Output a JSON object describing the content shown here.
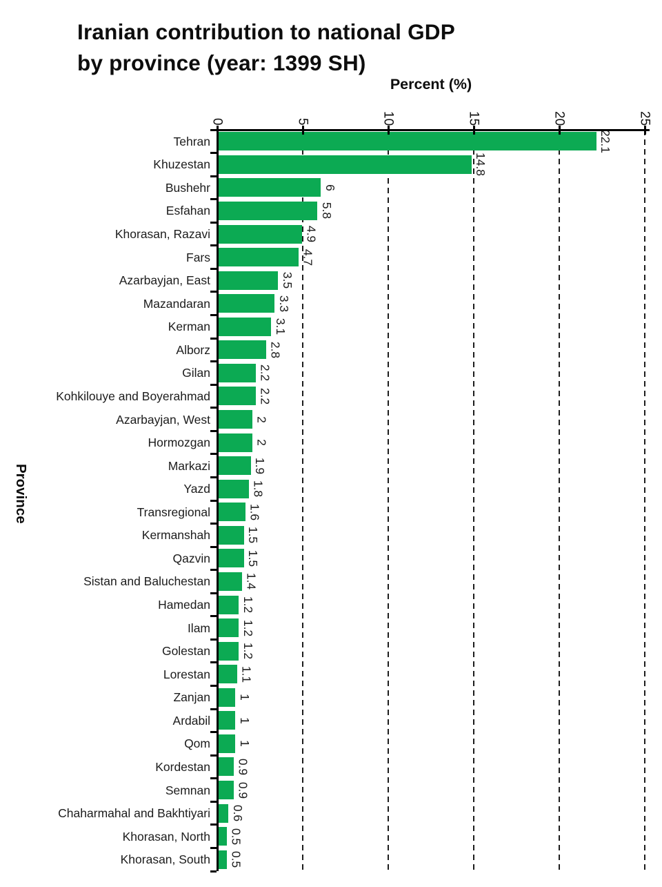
{
  "title": {
    "line1": "Iranian contribution to national GDP",
    "line2": "by province (year: 1399 SH)"
  },
  "chart_data": {
    "type": "bar",
    "orientation": "horizontal",
    "title": "Iranian contribution to national GDP by province (year: 1399 SH)",
    "xlabel": "Percent (%)",
    "ylabel": "Province",
    "xlim": [
      0,
      25
    ],
    "x_ticks": [
      0,
      5,
      10,
      15,
      20,
      25
    ],
    "grid": "vertical dashed lines at x ticks, behind bars",
    "legend": "none",
    "bar_color": "#0caa53",
    "categories": [
      "Tehran",
      "Khuzestan",
      "Bushehr",
      "Esfahan",
      "Khorasan, Razavi",
      "Fars",
      "Azarbayjan, East",
      "Mazandaran",
      "Kerman",
      "Alborz",
      "Gilan",
      "Kohkilouye and Boyerahmad",
      "Azarbayjan, West",
      "Hormozgan",
      "Markazi",
      "Yazd",
      "Transregional",
      "Kermanshah",
      "Qazvin",
      "Sistan and Baluchestan",
      "Hamedan",
      "Ilam",
      "Golestan",
      "Lorestan",
      "Zanjan",
      "Ardabil",
      "Qom",
      "Kordestan",
      "Semnan",
      "Chaharmahal and Bakhtiyari",
      "Khorasan, North",
      "Khorasan, South"
    ],
    "values": [
      22.1,
      14.8,
      6,
      5.8,
      4.9,
      4.7,
      3.5,
      3.3,
      3.1,
      2.8,
      2.2,
      2.2,
      2,
      2,
      1.9,
      1.8,
      1.6,
      1.5,
      1.5,
      1.4,
      1.2,
      1.2,
      1.2,
      1.1,
      1,
      1,
      1,
      0.9,
      0.9,
      0.6,
      0.5,
      0.5
    ]
  },
  "colors": {
    "bar": "#0caa53",
    "axis": "#000000",
    "grid": "#1c1c1c",
    "text": "#1c1c1c",
    "background": "#ffffff"
  }
}
